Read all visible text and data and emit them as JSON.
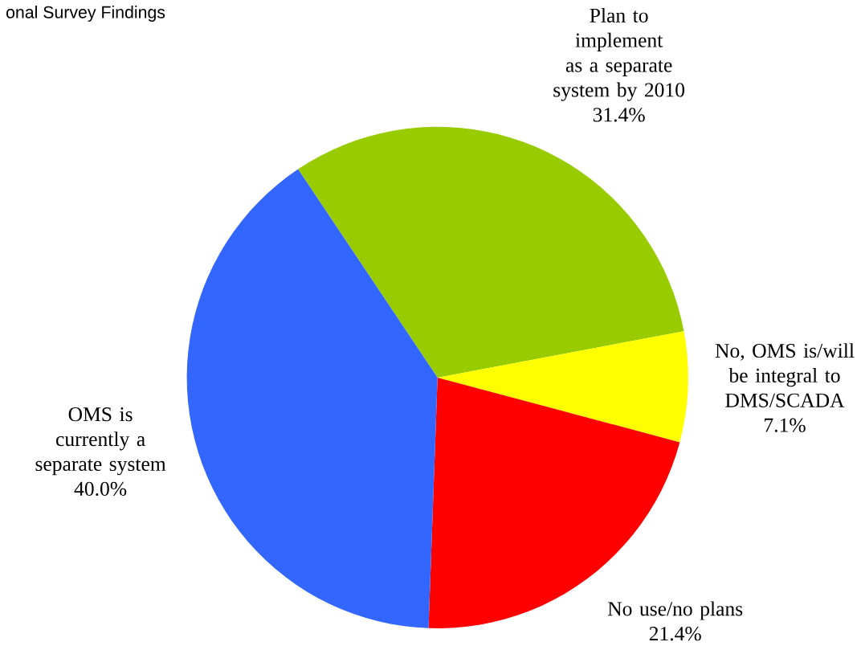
{
  "chart_data": {
    "type": "pie",
    "title": "onal Survey Findings",
    "categories": [
      "Plan to implement as a separate system by 2010",
      "No, OMS is/will be integral to DMS/SCADA",
      "No use/no plans",
      "OMS is currently a separate system"
    ],
    "values": [
      31.4,
      7.1,
      21.4,
      40.0
    ],
    "value_labels": [
      "31.4%",
      "7.1%",
      "21.4%",
      "40.0%"
    ],
    "colors": [
      "#99cc00",
      "#ffff00",
      "#ff0000",
      "#3366ff"
    ]
  }
}
